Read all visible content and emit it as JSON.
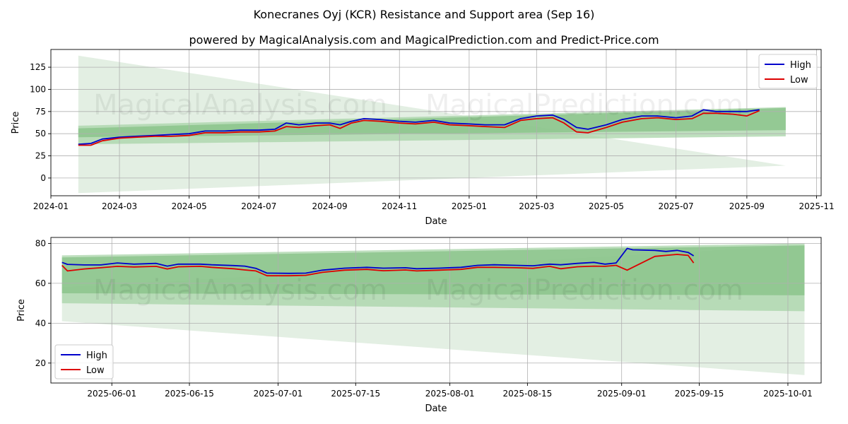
{
  "title": "Konecranes Oyj (KCR) Resistance and Support area (Sep 16)",
  "subtitle": "powered by MagicalAnalysis.com and MagicalPrediction.com and Predict-Price.com",
  "watermarks": [
    "MagicalAnalysis.com",
    "MagicalPrediction.com"
  ],
  "colors": {
    "high": "#0000cc",
    "low": "#dd0000",
    "band_light": "#d9ead9",
    "band_mid": "#a8d4a8",
    "band_dark": "#85c285",
    "grid": "#b0b0b0"
  },
  "chart_data": [
    {
      "type": "line",
      "name": "full-range",
      "xlabel": "Date",
      "ylabel": "Price",
      "xlim": [
        "2024-01-01",
        "2025-11-05"
      ],
      "ylim": [
        -20,
        145
      ],
      "x_ticks": [
        "2024-01",
        "2024-03",
        "2024-05",
        "2024-07",
        "2024-09",
        "2024-11",
        "2025-01",
        "2025-03",
        "2025-05",
        "2025-07",
        "2025-09",
        "2025-11"
      ],
      "y_ticks": [
        0,
        25,
        50,
        75,
        100,
        125
      ],
      "legend": [
        "High",
        "Low"
      ],
      "legend_position": "top-right",
      "bands": [
        {
          "start": "2024-01-25",
          "end": "2025-10-05",
          "upper": [
            138,
            14
          ],
          "lower": [
            -17,
            14
          ]
        },
        {
          "start": "2024-01-25",
          "end": "2025-10-05",
          "upper": [
            59,
            80
          ],
          "lower": [
            38,
            47
          ]
        },
        {
          "start": "2024-01-25",
          "end": "2025-10-05",
          "upper": [
            56,
            79
          ],
          "lower": [
            46,
            54
          ]
        }
      ],
      "series": [
        {
          "name": "High",
          "points": [
            [
              "2024-01-25",
              38
            ],
            [
              "2024-02-05",
              39
            ],
            [
              "2024-02-15",
              44
            ],
            [
              "2024-03-01",
              46
            ],
            [
              "2024-03-15",
              47
            ],
            [
              "2024-04-01",
              48
            ],
            [
              "2024-04-15",
              49
            ],
            [
              "2024-05-01",
              50
            ],
            [
              "2024-05-15",
              53
            ],
            [
              "2024-06-01",
              53
            ],
            [
              "2024-06-15",
              54
            ],
            [
              "2024-07-01",
              54
            ],
            [
              "2024-07-15",
              55
            ],
            [
              "2024-07-25",
              62
            ],
            [
              "2024-08-05",
              60
            ],
            [
              "2024-08-20",
              62
            ],
            [
              "2024-09-01",
              62
            ],
            [
              "2024-09-10",
              60
            ],
            [
              "2024-09-20",
              64
            ],
            [
              "2024-10-01",
              67
            ],
            [
              "2024-10-15",
              66
            ],
            [
              "2024-11-01",
              64
            ],
            [
              "2024-11-15",
              63
            ],
            [
              "2024-12-01",
              65
            ],
            [
              "2024-12-15",
              62
            ],
            [
              "2025-01-01",
              61
            ],
            [
              "2025-01-15",
              60
            ],
            [
              "2025-02-01",
              60
            ],
            [
              "2025-02-15",
              67
            ],
            [
              "2025-03-01",
              70
            ],
            [
              "2025-03-15",
              71
            ],
            [
              "2025-03-25",
              66
            ],
            [
              "2025-04-05",
              57
            ],
            [
              "2025-04-15",
              55
            ],
            [
              "2025-05-01",
              60
            ],
            [
              "2025-05-15",
              66
            ],
            [
              "2025-06-01",
              70
            ],
            [
              "2025-06-15",
              70
            ],
            [
              "2025-07-01",
              68
            ],
            [
              "2025-07-15",
              70
            ],
            [
              "2025-07-25",
              77
            ],
            [
              "2025-08-05",
              75
            ],
            [
              "2025-08-20",
              75
            ],
            [
              "2025-09-01",
              75
            ],
            [
              "2025-09-12",
              77
            ]
          ]
        },
        {
          "name": "Low",
          "points": [
            [
              "2024-01-25",
              37
            ],
            [
              "2024-02-05",
              37
            ],
            [
              "2024-02-15",
              42
            ],
            [
              "2024-03-01",
              45
            ],
            [
              "2024-03-15",
              46
            ],
            [
              "2024-04-01",
              47
            ],
            [
              "2024-04-15",
              47
            ],
            [
              "2024-05-01",
              48
            ],
            [
              "2024-05-15",
              51
            ],
            [
              "2024-06-01",
              51
            ],
            [
              "2024-06-15",
              52
            ],
            [
              "2024-07-01",
              52
            ],
            [
              "2024-07-15",
              53
            ],
            [
              "2024-07-25",
              58
            ],
            [
              "2024-08-05",
              57
            ],
            [
              "2024-08-20",
              59
            ],
            [
              "2024-09-01",
              60
            ],
            [
              "2024-09-10",
              56
            ],
            [
              "2024-09-20",
              62
            ],
            [
              "2024-10-01",
              65
            ],
            [
              "2024-10-15",
              64
            ],
            [
              "2024-11-01",
              62
            ],
            [
              "2024-11-15",
              61
            ],
            [
              "2024-12-01",
              63
            ],
            [
              "2024-12-15",
              60
            ],
            [
              "2025-01-01",
              59
            ],
            [
              "2025-01-15",
              58
            ],
            [
              "2025-02-01",
              57
            ],
            [
              "2025-02-15",
              65
            ],
            [
              "2025-03-01",
              67
            ],
            [
              "2025-03-15",
              68
            ],
            [
              "2025-03-25",
              62
            ],
            [
              "2025-04-05",
              52
            ],
            [
              "2025-04-15",
              51
            ],
            [
              "2025-05-01",
              57
            ],
            [
              "2025-05-15",
              63
            ],
            [
              "2025-06-01",
              67
            ],
            [
              "2025-06-15",
              68
            ],
            [
              "2025-07-01",
              66
            ],
            [
              "2025-07-15",
              67
            ],
            [
              "2025-07-25",
              73
            ],
            [
              "2025-08-05",
              73
            ],
            [
              "2025-08-20",
              72
            ],
            [
              "2025-09-01",
              70
            ],
            [
              "2025-09-12",
              76
            ]
          ]
        }
      ]
    },
    {
      "type": "line",
      "name": "zoomed",
      "xlabel": "Date",
      "ylabel": "Price",
      "xlim": [
        "2025-05-21",
        "2025-10-07"
      ],
      "ylim": [
        10,
        83
      ],
      "x_ticks": [
        "2025-06-01",
        "2025-06-15",
        "2025-07-01",
        "2025-07-15",
        "2025-08-01",
        "2025-08-15",
        "2025-09-01",
        "2025-09-15",
        "2025-10-01"
      ],
      "y_ticks": [
        20,
        40,
        60,
        80
      ],
      "legend": [
        "High",
        "Low"
      ],
      "legend_position": "bottom-left",
      "bands": [
        {
          "start": "2025-05-23",
          "end": "2025-10-04",
          "upper": [
            58,
            79
          ],
          "lower": [
            41,
            14
          ]
        },
        {
          "start": "2025-05-23",
          "end": "2025-10-04",
          "upper": [
            74,
            80
          ],
          "lower": [
            50,
            46
          ]
        },
        {
          "start": "2025-05-23",
          "end": "2025-10-04",
          "upper": [
            73,
            79
          ],
          "lower": [
            55,
            54
          ]
        }
      ],
      "series": [
        {
          "name": "High",
          "points": [
            [
              "2025-05-23",
              70.5
            ],
            [
              "2025-05-24",
              69.5
            ],
            [
              "2025-05-27",
              69.2
            ],
            [
              "2025-05-30",
              69.2
            ],
            [
              "2025-06-02",
              70.2
            ],
            [
              "2025-06-05",
              69.6
            ],
            [
              "2025-06-09",
              70.0
            ],
            [
              "2025-06-11",
              68.6
            ],
            [
              "2025-06-13",
              69.6
            ],
            [
              "2025-06-17",
              69.6
            ],
            [
              "2025-06-19",
              69.3
            ],
            [
              "2025-06-23",
              68.9
            ],
            [
              "2025-06-25",
              68.6
            ],
            [
              "2025-06-27",
              67.5
            ],
            [
              "2025-06-29",
              65.1
            ],
            [
              "2025-07-03",
              65.0
            ],
            [
              "2025-07-06",
              65.1
            ],
            [
              "2025-07-09",
              66.6
            ],
            [
              "2025-07-13",
              67.6
            ],
            [
              "2025-07-17",
              68.0
            ],
            [
              "2025-07-20",
              67.6
            ],
            [
              "2025-07-24",
              67.8
            ],
            [
              "2025-07-26",
              67.3
            ],
            [
              "2025-07-30",
              67.6
            ],
            [
              "2025-08-03",
              68.0
            ],
            [
              "2025-08-06",
              69.0
            ],
            [
              "2025-08-09",
              69.3
            ],
            [
              "2025-08-13",
              69.0
            ],
            [
              "2025-08-16",
              68.8
            ],
            [
              "2025-08-19",
              69.6
            ],
            [
              "2025-08-21",
              69.3
            ],
            [
              "2025-08-24",
              70.0
            ],
            [
              "2025-08-27",
              70.5
            ],
            [
              "2025-08-29",
              69.6
            ],
            [
              "2025-08-31",
              70.2
            ],
            [
              "2025-09-02",
              77.5
            ],
            [
              "2025-09-03",
              76.8
            ],
            [
              "2025-09-07",
              76.5
            ],
            [
              "2025-09-09",
              76.0
            ],
            [
              "2025-09-11",
              76.5
            ],
            [
              "2025-09-13",
              75.5
            ],
            [
              "2025-09-14",
              73.8
            ]
          ]
        },
        {
          "name": "Low",
          "points": [
            [
              "2025-05-23",
              69.0
            ],
            [
              "2025-05-24",
              66.2
            ],
            [
              "2025-05-27",
              67.2
            ],
            [
              "2025-05-30",
              67.8
            ],
            [
              "2025-06-02",
              68.5
            ],
            [
              "2025-06-05",
              68.2
            ],
            [
              "2025-06-09",
              68.5
            ],
            [
              "2025-06-11",
              67.2
            ],
            [
              "2025-06-13",
              68.3
            ],
            [
              "2025-06-17",
              68.5
            ],
            [
              "2025-06-19",
              68.0
            ],
            [
              "2025-06-23",
              67.3
            ],
            [
              "2025-06-25",
              66.7
            ],
            [
              "2025-06-27",
              66.2
            ],
            [
              "2025-06-29",
              63.8
            ],
            [
              "2025-07-03",
              63.8
            ],
            [
              "2025-07-06",
              64.0
            ],
            [
              "2025-07-09",
              65.5
            ],
            [
              "2025-07-13",
              66.6
            ],
            [
              "2025-07-17",
              67.0
            ],
            [
              "2025-07-20",
              66.3
            ],
            [
              "2025-07-24",
              66.7
            ],
            [
              "2025-07-26",
              66.2
            ],
            [
              "2025-07-30",
              66.6
            ],
            [
              "2025-08-03",
              67.0
            ],
            [
              "2025-08-06",
              68.0
            ],
            [
              "2025-08-09",
              68.0
            ],
            [
              "2025-08-13",
              67.8
            ],
            [
              "2025-08-16",
              67.5
            ],
            [
              "2025-08-19",
              68.5
            ],
            [
              "2025-08-21",
              67.3
            ],
            [
              "2025-08-24",
              68.3
            ],
            [
              "2025-08-27",
              68.6
            ],
            [
              "2025-08-29",
              68.5
            ],
            [
              "2025-08-31",
              69.0
            ],
            [
              "2025-09-02",
              66.6
            ],
            [
              "2025-09-03",
              68.0
            ],
            [
              "2025-09-07",
              73.5
            ],
            [
              "2025-09-09",
              74.0
            ],
            [
              "2025-09-11",
              74.5
            ],
            [
              "2025-09-13",
              74.0
            ],
            [
              "2025-09-14",
              70.2
            ]
          ]
        }
      ]
    }
  ]
}
